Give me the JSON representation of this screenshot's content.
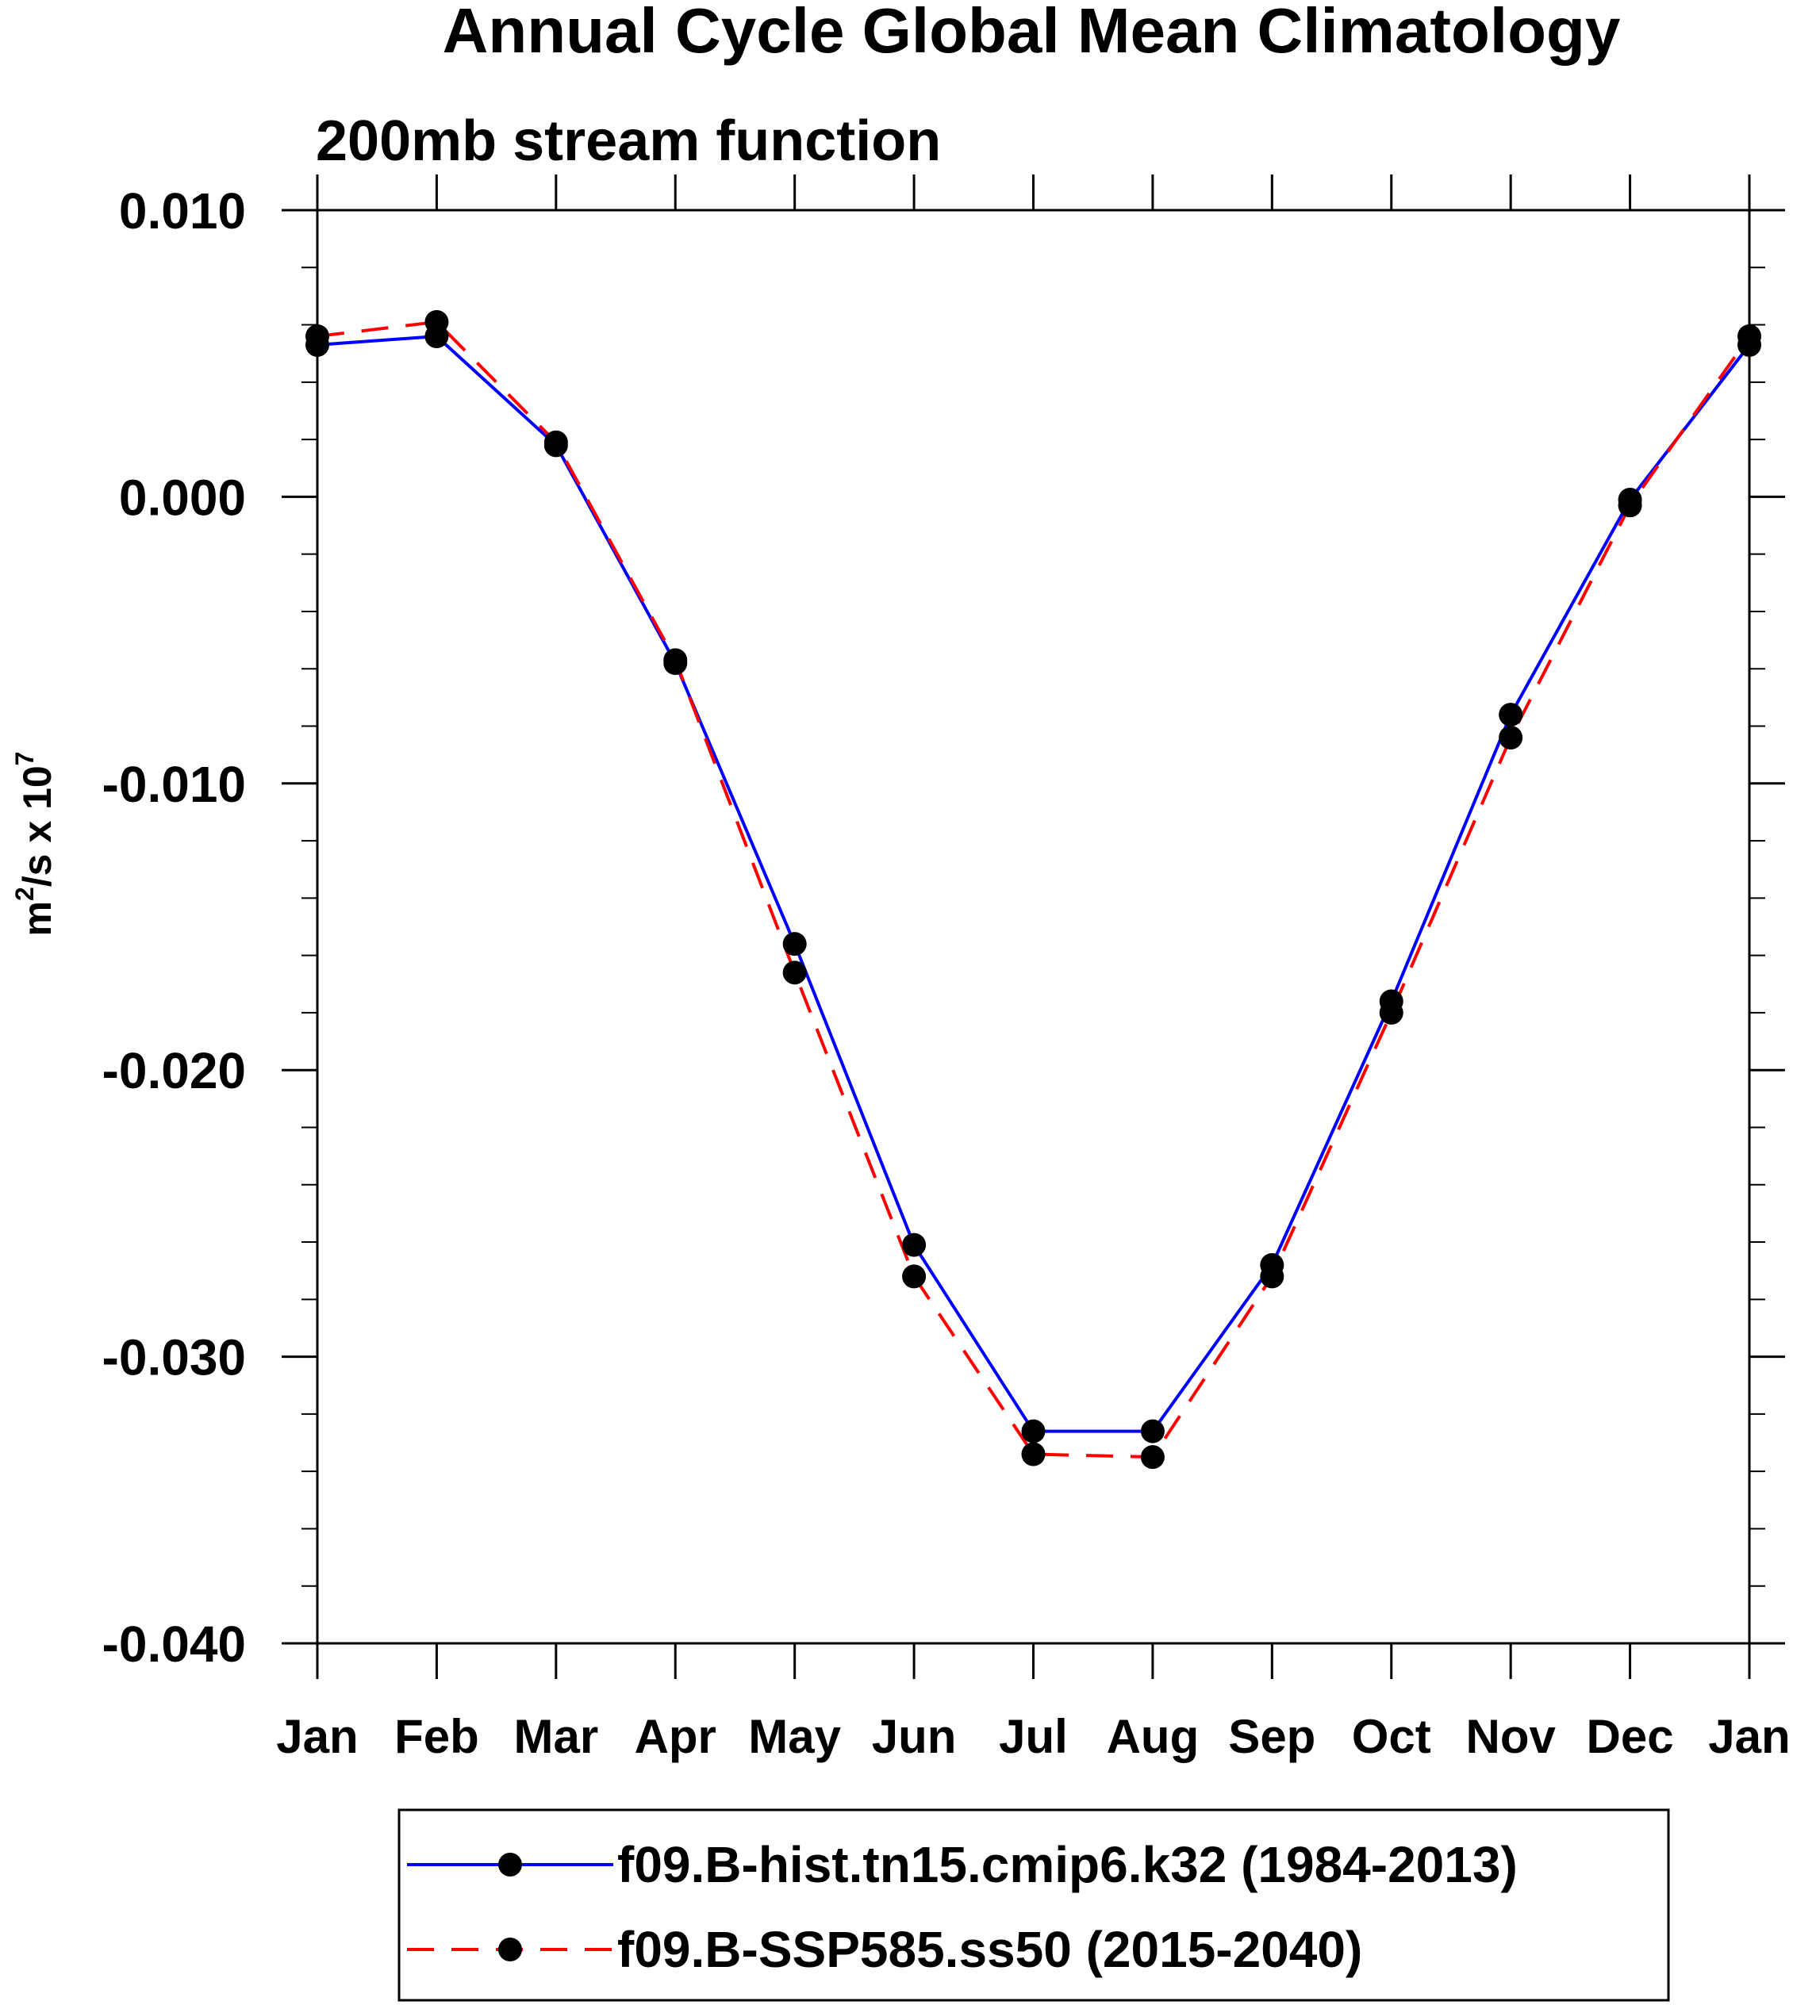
{
  "chart_data": {
    "type": "line",
    "title": "Annual Cycle Global Mean Climatology",
    "subtitle": "200mb stream function",
    "xlabel": "",
    "ylabel": "m2/s x 107",
    "ylabel_parts": {
      "base": "m",
      "exp1": "2",
      "mid": "/s x 10",
      "exp2": "7"
    },
    "categories": [
      "Jan",
      "Feb",
      "Mar",
      "Apr",
      "May",
      "Jun",
      "Jul",
      "Aug",
      "Sep",
      "Oct",
      "Nov",
      "Dec",
      "Jan"
    ],
    "ylim": [
      -0.04,
      0.01
    ],
    "yticks": [
      0.01,
      0.0,
      -0.01,
      -0.02,
      -0.03,
      -0.04
    ],
    "ytick_labels": [
      "0.010",
      "0.000",
      "-0.010",
      "-0.020",
      "-0.030",
      "-0.040"
    ],
    "yminor_step": 0.002,
    "legend_position": "bottom-center",
    "series": [
      {
        "name": "f09.B-hist.tn15.cmip6.k32 (1984-2013)",
        "color": "#0000ff",
        "dash": "solid",
        "values": [
          0.0053,
          0.0056,
          0.0018,
          -0.0058,
          -0.0156,
          -0.0261,
          -0.0326,
          -0.0326,
          -0.0268,
          -0.0176,
          -0.0076,
          -0.0001,
          0.0053
        ]
      },
      {
        "name": "f09.B-SSP585.ss50 (2015-2040)",
        "color": "#ff0000",
        "dash": "dashed",
        "values": [
          0.0056,
          0.0061,
          0.0019,
          -0.0057,
          -0.0166,
          -0.0272,
          -0.0334,
          -0.0335,
          -0.0272,
          -0.018,
          -0.0084,
          -0.0003,
          0.0056
        ]
      }
    ]
  }
}
